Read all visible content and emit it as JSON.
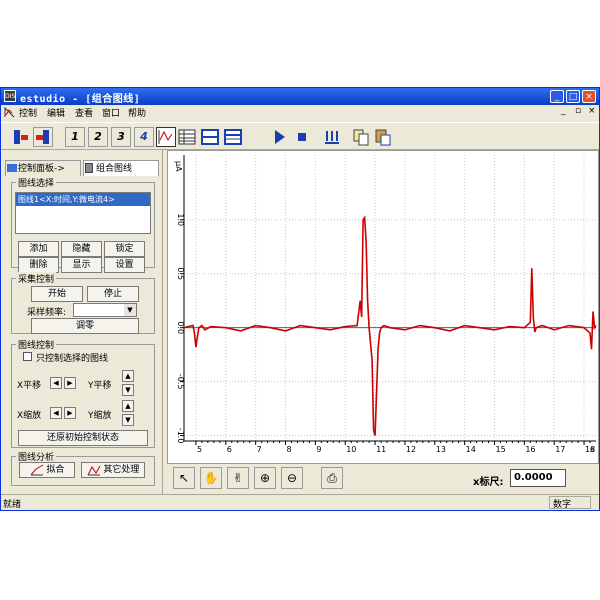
{
  "window": {
    "icon_text": "DIS",
    "title": "estudio - [组合图线]",
    "minimize": "_",
    "maximize": "□",
    "close": "×"
  },
  "menu": {
    "items": [
      "控制",
      "编辑",
      "查看",
      "窗口",
      "帮助"
    ],
    "mdi_min": "_",
    "mdi_restore": "▫",
    "mdi_close": "×"
  },
  "toolbar": {
    "numbers": [
      "1",
      "2",
      "3",
      "4"
    ]
  },
  "left_panel": {
    "tab_control": "控制面板->",
    "tab_graph": "组合图线",
    "curve_select": {
      "label": "图线选择",
      "list_item": "图线1<X:时间,Y:微电流4>",
      "buttons": [
        "添加",
        "隐藏",
        "锁定",
        "删除",
        "显示",
        "设置"
      ]
    },
    "acquisition": {
      "label": "采集控制",
      "start": "开始",
      "stop": "停止",
      "rate_label": "采样频率:",
      "rate_value": "",
      "zero": "调零"
    },
    "curve_control": {
      "label": "图线控制",
      "only_selected": "只控制选择的图线",
      "x_shift": "X平移",
      "y_shift": "Y平移",
      "x_zoom": "X缩放",
      "y_zoom": "Y缩放",
      "reset": "还原初始控制状态"
    },
    "analysis": {
      "label": "图线分析",
      "fit": "拟合",
      "other": "其它处理"
    }
  },
  "chart_data": {
    "type": "line",
    "ylabel": "μA",
    "xlabel": "s",
    "xlim": [
      4.6,
      18.4
    ],
    "ylim": [
      -1.05,
      1.6
    ],
    "x_ticks": [
      5,
      6,
      7,
      8,
      9,
      10,
      11,
      12,
      13,
      14,
      15,
      16,
      17,
      18
    ],
    "y_ticks": [
      1.0,
      0.5,
      0.0,
      -0.5,
      -1.0
    ],
    "y_tick_labels": [
      "1.0",
      "0.5",
      "0.0",
      "-0.5",
      "-1.0"
    ],
    "grid": true,
    "series": [
      {
        "color": "#cc0000",
        "x": [
          4.6,
          4.9,
          4.95,
          5.0,
          5.05,
          5.1,
          5.2,
          5.3,
          5.5,
          6.0,
          6.5,
          7.0,
          7.5,
          8.0,
          8.5,
          9.0,
          9.5,
          10.0,
          10.4,
          10.5,
          10.55,
          10.6,
          10.65,
          10.7,
          10.75,
          10.8,
          10.9,
          10.95,
          11.0,
          11.05,
          11.1,
          11.15,
          11.2,
          11.3,
          11.5,
          12.0,
          12.5,
          13.0,
          13.5,
          14.0,
          14.5,
          15.0,
          15.5,
          16.0,
          16.2,
          16.25,
          16.3,
          16.35,
          16.4,
          16.6,
          17.0,
          17.5,
          18.0,
          18.2,
          18.25,
          18.3,
          18.35,
          18.4
        ],
        "y": [
          0.0,
          0.02,
          -0.05,
          -0.18,
          -0.08,
          0.0,
          0.02,
          -0.02,
          0.01,
          0.0,
          -0.03,
          0.02,
          0.0,
          -0.03,
          0.02,
          0.0,
          -0.02,
          0.01,
          0.02,
          0.25,
          0.1,
          1.0,
          1.02,
          0.8,
          0.25,
          0.0,
          -0.3,
          -0.95,
          -1.0,
          -0.6,
          -0.2,
          -0.05,
          0.0,
          0.02,
          0.0,
          -0.02,
          0.02,
          0.0,
          -0.03,
          0.02,
          0.0,
          -0.02,
          0.01,
          0.0,
          0.05,
          0.55,
          0.1,
          -0.04,
          0.0,
          0.02,
          -0.02,
          0.02,
          0.0,
          -0.05,
          -0.2,
          0.15,
          0.0,
          0.02
        ]
      }
    ]
  },
  "bottom_tools": {
    "x_scale_label": "x标尺:",
    "x_scale_value": "0.0000"
  },
  "status": {
    "left": "就绪",
    "right": "数字"
  }
}
